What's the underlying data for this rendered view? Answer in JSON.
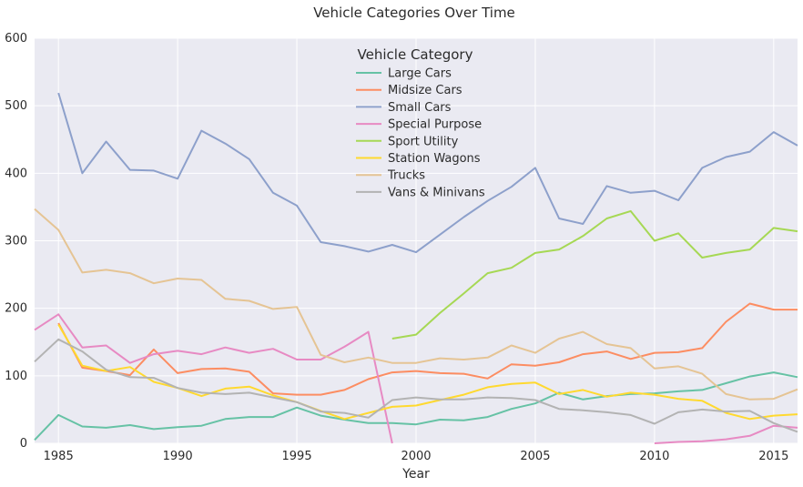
{
  "chart_data": {
    "type": "line",
    "title": "Vehicle Categories Over Time",
    "xlabel": "Year",
    "ylabel": "",
    "xlim": [
      1984,
      2016
    ],
    "ylim": [
      0,
      600
    ],
    "x_ticks": [
      1985,
      1990,
      1995,
      2000,
      2005,
      2010,
      2015
    ],
    "y_ticks": [
      0,
      100,
      200,
      300,
      400,
      500,
      600
    ],
    "grid": true,
    "legend": {
      "title": "Vehicle Category",
      "position": "top-center"
    },
    "colors": {
      "background": "#eaeaf2",
      "grid": "#ffffff"
    },
    "series": [
      {
        "name": "Large Cars",
        "color": "#66c2a5",
        "points": [
          [
            1984,
            5
          ],
          [
            1985,
            42
          ],
          [
            1986,
            25
          ],
          [
            1987,
            23
          ],
          [
            1988,
            27
          ],
          [
            1989,
            21
          ],
          [
            1990,
            24
          ],
          [
            1991,
            26
          ],
          [
            1992,
            36
          ],
          [
            1993,
            39
          ],
          [
            1994,
            39
          ],
          [
            1995,
            53
          ],
          [
            1996,
            41
          ],
          [
            1997,
            35
          ],
          [
            1998,
            30
          ],
          [
            1999,
            30
          ],
          [
            2000,
            28
          ],
          [
            2001,
            35
          ],
          [
            2002,
            34
          ],
          [
            2003,
            39
          ],
          [
            2004,
            51
          ],
          [
            2005,
            59
          ],
          [
            2006,
            75
          ],
          [
            2007,
            65
          ],
          [
            2008,
            70
          ],
          [
            2009,
            73
          ],
          [
            2010,
            74
          ],
          [
            2011,
            77
          ],
          [
            2012,
            79
          ],
          [
            2013,
            89
          ],
          [
            2014,
            99
          ],
          [
            2015,
            105
          ],
          [
            2016,
            98
          ]
        ]
      },
      {
        "name": "Midsize Cars",
        "color": "#fc8d62",
        "points": [
          [
            1985,
            178
          ],
          [
            1986,
            112
          ],
          [
            1987,
            107
          ],
          [
            1988,
            101
          ],
          [
            1989,
            139
          ],
          [
            1990,
            104
          ],
          [
            1991,
            110
          ],
          [
            1992,
            111
          ],
          [
            1993,
            106
          ],
          [
            1994,
            74
          ],
          [
            1995,
            72
          ],
          [
            1996,
            72
          ],
          [
            1997,
            79
          ],
          [
            1998,
            95
          ],
          [
            1999,
            105
          ],
          [
            2000,
            107
          ],
          [
            2001,
            104
          ],
          [
            2002,
            103
          ],
          [
            2003,
            96
          ],
          [
            2004,
            117
          ],
          [
            2005,
            115
          ],
          [
            2006,
            120
          ],
          [
            2007,
            132
          ],
          [
            2008,
            136
          ],
          [
            2009,
            125
          ],
          [
            2010,
            134
          ],
          [
            2011,
            135
          ],
          [
            2012,
            141
          ],
          [
            2013,
            180
          ],
          [
            2014,
            207
          ],
          [
            2015,
            198
          ],
          [
            2016,
            198
          ]
        ]
      },
      {
        "name": "Small Cars",
        "color": "#8da0cb",
        "points": [
          [
            1985,
            519
          ],
          [
            1986,
            400
          ],
          [
            1987,
            447
          ],
          [
            1988,
            405
          ],
          [
            1989,
            404
          ],
          [
            1990,
            392
          ],
          [
            1991,
            463
          ],
          [
            1992,
            444
          ],
          [
            1993,
            421
          ],
          [
            1994,
            371
          ],
          [
            1995,
            352
          ],
          [
            1996,
            298
          ],
          [
            1997,
            292
          ],
          [
            1998,
            284
          ],
          [
            1999,
            294
          ],
          [
            2000,
            283
          ],
          [
            2001,
            309
          ],
          [
            2002,
            335
          ],
          [
            2003,
            359
          ],
          [
            2004,
            380
          ],
          [
            2005,
            408
          ],
          [
            2006,
            333
          ],
          [
            2007,
            325
          ],
          [
            2008,
            381
          ],
          [
            2009,
            371
          ],
          [
            2010,
            374
          ],
          [
            2011,
            360
          ],
          [
            2012,
            408
          ],
          [
            2013,
            424
          ],
          [
            2014,
            432
          ],
          [
            2015,
            461
          ],
          [
            2016,
            441
          ]
        ]
      },
      {
        "name": "Special Purpose",
        "color": "#e78ac3",
        "points": [
          [
            1984,
            168
          ],
          [
            1985,
            191
          ],
          [
            1986,
            142
          ],
          [
            1987,
            145
          ],
          [
            1988,
            119
          ],
          [
            1989,
            132
          ],
          [
            1990,
            137
          ],
          [
            1991,
            132
          ],
          [
            1992,
            142
          ],
          [
            1993,
            134
          ],
          [
            1994,
            140
          ],
          [
            1995,
            124
          ],
          [
            1996,
            124
          ],
          [
            1997,
            143
          ],
          [
            1998,
            165
          ],
          [
            1999,
            0
          ],
          null,
          [
            2010,
            0
          ],
          [
            2011,
            2
          ],
          [
            2012,
            3
          ],
          [
            2013,
            6
          ],
          [
            2014,
            11
          ],
          [
            2015,
            26
          ],
          [
            2016,
            23
          ]
        ]
      },
      {
        "name": "Sport Utility",
        "color": "#a6d854",
        "points": [
          [
            1999,
            155
          ],
          [
            2000,
            161
          ],
          [
            2001,
            193
          ],
          [
            2002,
            222
          ],
          [
            2003,
            252
          ],
          [
            2004,
            260
          ],
          [
            2005,
            282
          ],
          [
            2006,
            287
          ],
          [
            2007,
            307
          ],
          [
            2008,
            333
          ],
          [
            2009,
            344
          ],
          [
            2010,
            300
          ],
          [
            2011,
            311
          ],
          [
            2012,
            275
          ],
          [
            2013,
            282
          ],
          [
            2014,
            287
          ],
          [
            2015,
            319
          ],
          [
            2016,
            314
          ]
        ]
      },
      {
        "name": "Station Wagons",
        "color": "#ffd92f",
        "points": [
          [
            1985,
            176
          ],
          [
            1986,
            115
          ],
          [
            1987,
            107
          ],
          [
            1988,
            113
          ],
          [
            1989,
            91
          ],
          [
            1990,
            82
          ],
          [
            1991,
            70
          ],
          [
            1992,
            81
          ],
          [
            1993,
            84
          ],
          [
            1994,
            71
          ],
          [
            1995,
            61
          ],
          [
            1996,
            48
          ],
          [
            1997,
            36
          ],
          [
            1998,
            45
          ],
          [
            1999,
            54
          ],
          [
            2000,
            56
          ],
          [
            2001,
            64
          ],
          [
            2002,
            72
          ],
          [
            2003,
            83
          ],
          [
            2004,
            88
          ],
          [
            2005,
            90
          ],
          [
            2006,
            73
          ],
          [
            2007,
            79
          ],
          [
            2008,
            69
          ],
          [
            2009,
            75
          ],
          [
            2010,
            72
          ],
          [
            2011,
            66
          ],
          [
            2012,
            63
          ],
          [
            2013,
            45
          ],
          [
            2014,
            36
          ],
          [
            2015,
            41
          ],
          [
            2016,
            43
          ]
        ]
      },
      {
        "name": "Trucks",
        "color": "#e5c494",
        "points": [
          [
            1984,
            347
          ],
          [
            1985,
            316
          ],
          [
            1986,
            253
          ],
          [
            1987,
            257
          ],
          [
            1988,
            252
          ],
          [
            1989,
            237
          ],
          [
            1990,
            244
          ],
          [
            1991,
            242
          ],
          [
            1992,
            214
          ],
          [
            1993,
            211
          ],
          [
            1994,
            199
          ],
          [
            1995,
            202
          ],
          [
            1996,
            131
          ],
          [
            1997,
            120
          ],
          [
            1998,
            127
          ],
          [
            1999,
            119
          ],
          [
            2000,
            119
          ],
          [
            2001,
            126
          ],
          [
            2002,
            124
          ],
          [
            2003,
            127
          ],
          [
            2004,
            145
          ],
          [
            2005,
            134
          ],
          [
            2006,
            155
          ],
          [
            2007,
            165
          ],
          [
            2008,
            147
          ],
          [
            2009,
            141
          ],
          [
            2010,
            111
          ],
          [
            2011,
            114
          ],
          [
            2012,
            103
          ],
          [
            2013,
            73
          ],
          [
            2014,
            65
          ],
          [
            2015,
            66
          ],
          [
            2016,
            80
          ]
        ]
      },
      {
        "name": "Vans & Minivans",
        "color": "#b3b3b3",
        "points": [
          [
            1984,
            121
          ],
          [
            1985,
            154
          ],
          [
            1986,
            136
          ],
          [
            1987,
            109
          ],
          [
            1988,
            98
          ],
          [
            1989,
            97
          ],
          [
            1990,
            82
          ],
          [
            1991,
            75
          ],
          [
            1992,
            73
          ],
          [
            1993,
            75
          ],
          [
            1994,
            68
          ],
          [
            1995,
            61
          ],
          [
            1996,
            47
          ],
          [
            1997,
            45
          ],
          [
            1998,
            38
          ],
          [
            1999,
            64
          ],
          [
            2000,
            68
          ],
          [
            2001,
            65
          ],
          [
            2002,
            65
          ],
          [
            2003,
            68
          ],
          [
            2004,
            67
          ],
          [
            2005,
            64
          ],
          [
            2006,
            51
          ],
          [
            2007,
            49
          ],
          [
            2008,
            46
          ],
          [
            2009,
            42
          ],
          [
            2010,
            29
          ],
          [
            2011,
            46
          ],
          [
            2012,
            50
          ],
          [
            2013,
            47
          ],
          [
            2014,
            48
          ],
          [
            2015,
            30
          ],
          [
            2016,
            17
          ]
        ]
      }
    ]
  }
}
